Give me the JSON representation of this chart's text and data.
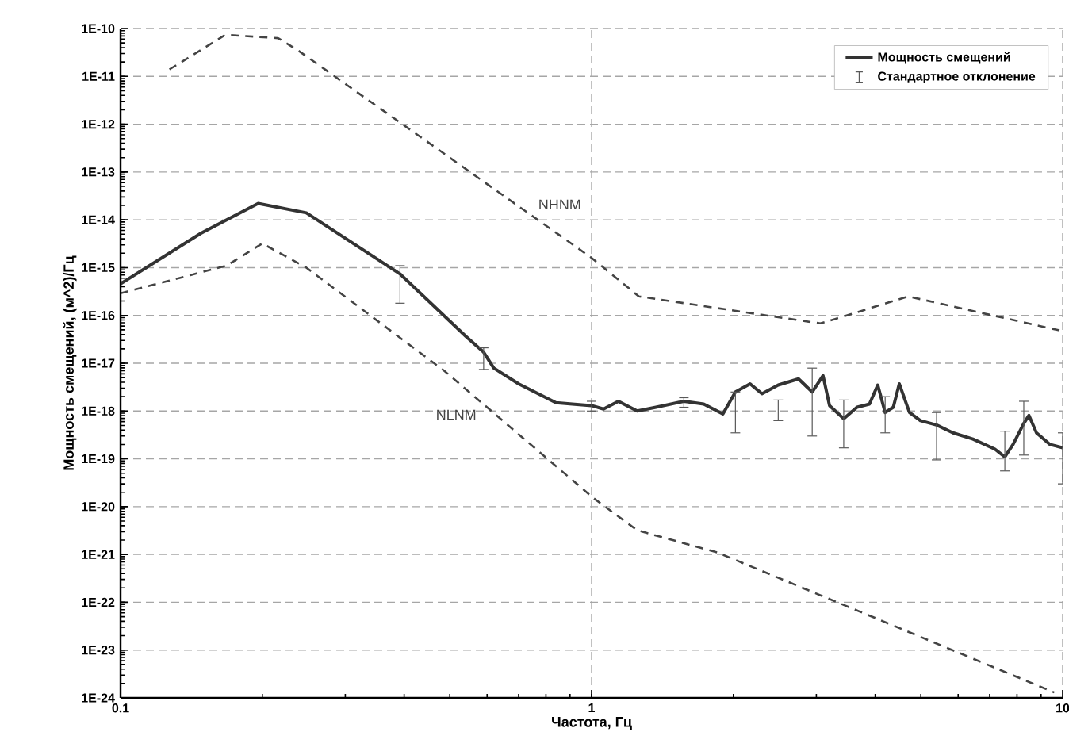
{
  "chart_data": {
    "type": "line",
    "xlabel": "Частота, Гц",
    "ylabel": "Мощность смещений, (м^2)/Гц",
    "log": "xy",
    "grid": true,
    "legend": "top right",
    "marker": "none",
    "xlim": [
      0.1,
      10
    ],
    "xticks": [
      0.1,
      1,
      10
    ],
    "ylim": [
      1e-24,
      1e-10
    ],
    "yticks": [
      {
        "value": 1e-24,
        "label": "1E-24"
      },
      {
        "value": 1e-23,
        "label": "1E-23"
      },
      {
        "value": 1e-22,
        "label": "1E-22"
      },
      {
        "value": 1e-21,
        "label": "1E-21"
      },
      {
        "value": 1e-20,
        "label": "1E-20"
      },
      {
        "value": 1e-19,
        "label": "1E-19"
      },
      {
        "value": 1e-18,
        "label": "1E-18"
      },
      {
        "value": 1e-17,
        "label": "1E-17"
      },
      {
        "value": 1e-16,
        "label": "1E-16"
      },
      {
        "value": 1e-15,
        "label": "1E-15"
      },
      {
        "value": 1e-14,
        "label": "1E-14"
      },
      {
        "value": 1e-13,
        "label": "1E-13"
      },
      {
        "value": 1e-12,
        "label": "1E-12"
      },
      {
        "value": 1e-11,
        "label": "1E-11"
      },
      {
        "value": 1e-10,
        "label": "1E-10"
      }
    ],
    "annotations": [
      "Стандартное отклонение"
    ],
    "series": [
      {
        "name": "Мощность смещений",
        "color": "#333333",
        "line_style": "solid",
        "x": [
          0.1,
          0.148,
          0.196,
          0.248,
          0.392,
          0.54,
          0.59,
          0.62,
          0.7,
          0.84,
          0.91,
          1.0,
          1.06,
          1.14,
          1.25,
          1.37,
          1.57,
          1.73,
          1.9,
          2.02,
          2.17,
          2.3,
          2.49,
          2.75,
          2.94,
          3.1,
          3.2,
          3.43,
          3.66,
          3.89,
          4.05,
          4.2,
          4.37,
          4.5,
          4.73,
          4.99,
          5.4,
          5.85,
          6.45,
          7.18,
          7.54,
          7.85,
          8.27,
          8.48,
          8.8,
          9.4,
          10
        ],
        "values": [
          4.6e-16,
          5.2e-15,
          2.2e-14,
          1.4e-14,
          7.4e-16,
          3.7e-17,
          1.7e-17,
          7.9e-18,
          3.7e-18,
          1.5e-18,
          1.4e-18,
          1.3e-18,
          1.1e-18,
          1.6e-18,
          1e-18,
          1.2e-18,
          1.6e-18,
          1.4e-18,
          8.7e-19,
          2.5e-18,
          3.7e-18,
          2.3e-18,
          3.5e-18,
          4.7e-18,
          2.5e-18,
          5.5e-18,
          1.3e-18,
          6.9e-19,
          1.2e-18,
          1.4e-18,
          3.5e-18,
          9.3e-19,
          1.2e-18,
          3.7e-18,
          9.3e-19,
          6.3e-19,
          5.1e-19,
          3.5e-19,
          2.6e-19,
          1.6e-19,
          1.1e-19,
          2e-19,
          5.5e-19,
          8.1e-19,
          3.5e-19,
          2e-19,
          1.7e-19
        ],
        "errors": [
          null,
          null,
          null,
          null,
          [
            1.8e-16,
            1.1e-15
          ],
          null,
          [
            7.4e-18,
            2.1e-17
          ],
          null,
          null,
          null,
          null,
          [
            1e-18,
            1.6e-18
          ],
          null,
          null,
          null,
          null,
          [
            1.2e-18,
            1.9e-18
          ],
          null,
          null,
          [
            3.5e-19,
            2.5e-18
          ],
          null,
          null,
          [
            6.3e-19,
            1.7e-18
          ],
          null,
          [
            3e-19,
            7.9e-18
          ],
          null,
          null,
          [
            1.7e-19,
            1.7e-18
          ],
          null,
          null,
          null,
          [
            3.5e-19,
            2e-18
          ],
          null,
          null,
          null,
          null,
          [
            9.5e-20,
            9.3e-19
          ],
          null,
          null,
          null,
          [
            5.6e-20,
            3.8e-19
          ],
          null,
          [
            1.2e-19,
            1.6e-18
          ],
          null,
          null,
          null,
          [
            3e-20,
            3.5e-19
          ]
        ]
      },
      {
        "name": "NHNM",
        "color": "#444444",
        "line_style": "dashed",
        "x": [
          0.127,
          0.167,
          0.216,
          0.238,
          1.0,
          1.26,
          2.35,
          3.06,
          3.3,
          4.7,
          10
        ],
        "values": [
          1.4e-11,
          7.4e-11,
          6.3e-11,
          3.5e-11,
          1.6e-15,
          2.5e-16,
          1e-16,
          6.8e-17,
          8.5e-17,
          2.5e-16,
          4.7e-17
        ]
      },
      {
        "name": "NLNM",
        "color": "#444444",
        "line_style": "dashed",
        "x": [
          0.1,
          0.168,
          0.2,
          0.248,
          0.487,
          1.01,
          1.25,
          1.85,
          9.6
        ],
        "values": [
          2.9e-16,
          1.1e-15,
          3.2e-15,
          1e-15,
          6.9e-18,
          1.5e-20,
          3.2e-21,
          1.1e-21,
          1.3e-24
        ]
      }
    ]
  }
}
